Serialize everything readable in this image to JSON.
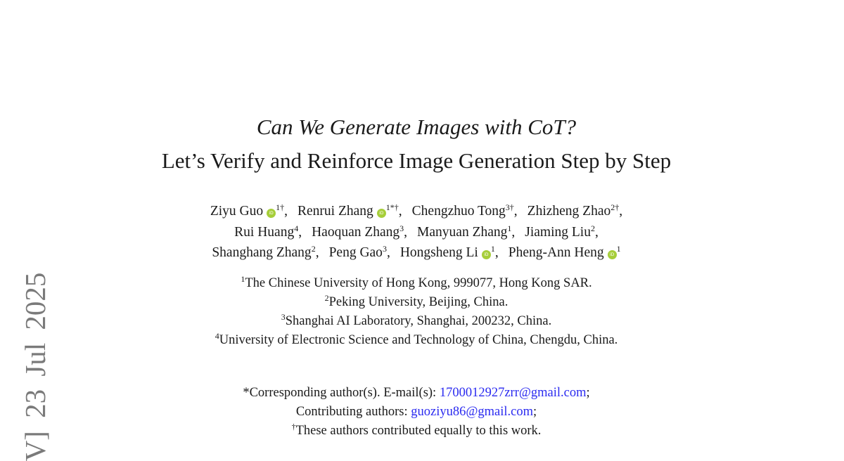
{
  "arxiv_stamp": "V]  23 Jul 2025",
  "title": "Can We Generate Images with CoT?",
  "subtitle": "Let’s Verify and Reinforce Image Generation Step by Step",
  "authors": [
    {
      "name": "Ziyu Guo",
      "orcid": true,
      "sup": "1†"
    },
    {
      "name": "Renrui Zhang",
      "orcid": true,
      "sup": "1*†"
    },
    {
      "name": "Chengzhuo Tong",
      "orcid": false,
      "sup": "3†"
    },
    {
      "name": "Zhizheng Zhao",
      "orcid": false,
      "sup": "2†"
    },
    {
      "name": "Rui Huang",
      "orcid": false,
      "sup": "4"
    },
    {
      "name": "Haoquan Zhang",
      "orcid": false,
      "sup": "3"
    },
    {
      "name": "Manyuan Zhang",
      "orcid": false,
      "sup": "1"
    },
    {
      "name": "Jiaming Liu",
      "orcid": false,
      "sup": "2"
    },
    {
      "name": "Shanghang Zhang",
      "orcid": false,
      "sup": "2"
    },
    {
      "name": "Peng Gao",
      "orcid": false,
      "sup": "3"
    },
    {
      "name": "Hongsheng Li",
      "orcid": true,
      "sup": "1"
    },
    {
      "name": "Pheng-Ann Heng",
      "orcid": true,
      "sup": "1"
    }
  ],
  "orcid_icon_label": "iD",
  "orcid_color": "#a6ce39",
  "link_color": "#2b2bf0",
  "affiliations": [
    {
      "sup": "1",
      "text": "The Chinese University of Hong Kong, 999077, Hong Kong SAR."
    },
    {
      "sup": "2",
      "text": "Peking University, Beijing, China."
    },
    {
      "sup": "3",
      "text": "Shanghai AI Laboratory, Shanghai, 200232, China."
    },
    {
      "sup": "4",
      "text": "University of Electronic Science and Technology of China, Chengdu, China."
    }
  ],
  "notes": {
    "corresponding_prefix": "*Corresponding author(s). E-mail(s): ",
    "corresponding_email": "1700012927zrr@gmail.com",
    "corresponding_suffix": ";",
    "contributing_prefix": "Contributing authors: ",
    "contributing_email": "guoziyu86@gmail.com",
    "contributing_suffix": ";",
    "equal_sup": "†",
    "equal_text": "These authors contributed equally to this work."
  }
}
